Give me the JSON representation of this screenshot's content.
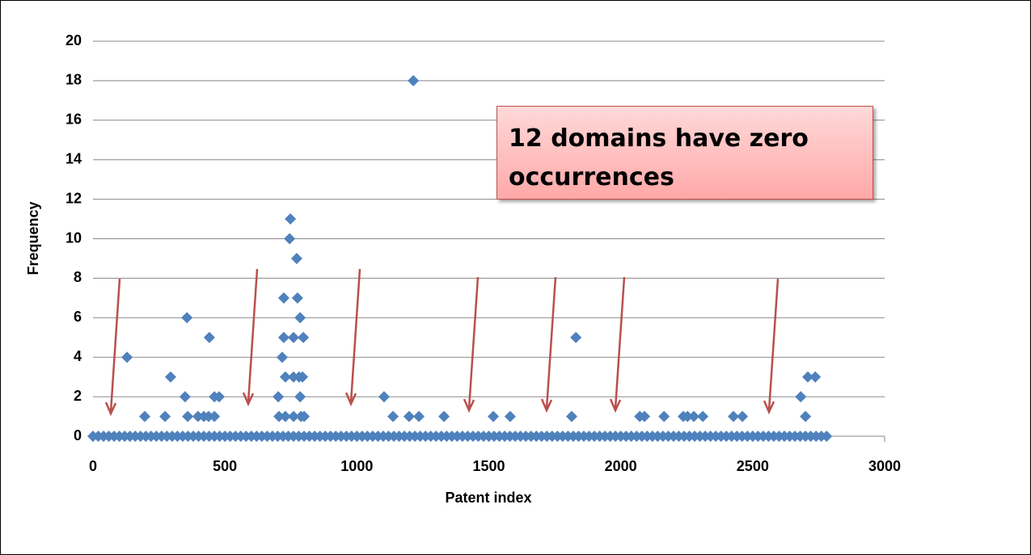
{
  "chart_data": {
    "type": "scatter",
    "xlabel": "Patent index",
    "ylabel": "Frequency",
    "annotation": "12 domains have zero occurrences",
    "xlim": [
      0,
      3000
    ],
    "xticks": [
      0,
      500,
      1000,
      1500,
      2000,
      2500,
      3000
    ],
    "ylim": [
      0,
      20
    ],
    "yticks": [
      0,
      2,
      4,
      6,
      8,
      10,
      12,
      14,
      16,
      18,
      20
    ],
    "grid": true,
    "series": [
      {
        "color": "#4f81bd",
        "x": [
          129,
          196,
          273,
          294,
          349,
          356,
          359,
          398,
          420,
          438,
          441,
          460,
          460,
          478,
          702,
          705,
          717,
          723,
          723,
          729,
          729,
          745,
          748,
          760,
          760,
          760,
          772,
          775,
          781,
          785,
          785,
          788,
          797,
          794,
          800,
          1103,
          1137,
          1198,
          1214,
          1235,
          1330,
          1517,
          1581,
          1814,
          1830,
          2072,
          2090,
          2164,
          2237,
          2253,
          2277,
          2311,
          2427,
          2461,
          2682,
          2700,
          2709,
          2737
        ],
        "values": [
          4,
          1,
          1,
          3,
          2,
          6,
          1,
          1,
          1,
          1,
          5,
          1,
          2,
          2,
          2,
          1,
          4,
          7,
          5,
          3,
          1,
          10,
          11,
          5,
          3,
          1,
          9,
          7,
          3,
          6,
          2,
          1,
          5,
          3,
          1,
          2,
          1,
          1,
          18,
          1,
          1,
          1,
          1,
          1,
          5,
          1,
          1,
          1,
          1,
          1,
          1,
          1,
          1,
          1,
          2,
          1,
          3,
          3
        ]
      },
      {
        "color": "#4f81bd",
        "x": [
          0,
          20,
          40,
          60,
          80,
          100,
          120,
          140,
          160,
          180,
          200,
          220,
          240,
          260,
          280,
          300,
          320,
          340,
          360,
          380,
          400,
          420,
          440,
          460,
          480,
          500,
          520,
          540,
          560,
          580,
          600,
          620,
          640,
          660,
          680,
          700,
          720,
          740,
          760,
          780,
          800,
          820,
          840,
          860,
          880,
          900,
          920,
          940,
          960,
          980,
          1000,
          1020,
          1040,
          1060,
          1080,
          1100,
          1120,
          1140,
          1160,
          1180,
          1200,
          1220,
          1240,
          1260,
          1280,
          1300,
          1320,
          1340,
          1360,
          1380,
          1400,
          1420,
          1440,
          1460,
          1480,
          1500,
          1520,
          1540,
          1560,
          1580,
          1600,
          1620,
          1640,
          1660,
          1680,
          1700,
          1720,
          1740,
          1760,
          1780,
          1800,
          1820,
          1840,
          1860,
          1880,
          1900,
          1920,
          1940,
          1960,
          1980,
          2000,
          2020,
          2040,
          2060,
          2080,
          2100,
          2120,
          2140,
          2160,
          2180,
          2200,
          2220,
          2240,
          2260,
          2280,
          2300,
          2320,
          2340,
          2360,
          2380,
          2400,
          2420,
          2440,
          2460,
          2480,
          2500,
          2520,
          2540,
          2560,
          2580,
          2600,
          2620,
          2640,
          2660,
          2680,
          2700,
          2720,
          2740,
          2760,
          2780
        ],
        "values": [
          0,
          0,
          0,
          0,
          0,
          0,
          0,
          0,
          0,
          0,
          0,
          0,
          0,
          0,
          0,
          0,
          0,
          0,
          0,
          0,
          0,
          0,
          0,
          0,
          0,
          0,
          0,
          0,
          0,
          0,
          0,
          0,
          0,
          0,
          0,
          0,
          0,
          0,
          0,
          0,
          0,
          0,
          0,
          0,
          0,
          0,
          0,
          0,
          0,
          0,
          0,
          0,
          0,
          0,
          0,
          0,
          0,
          0,
          0,
          0,
          0,
          0,
          0,
          0,
          0,
          0,
          0,
          0,
          0,
          0,
          0,
          0,
          0,
          0,
          0,
          0,
          0,
          0,
          0,
          0,
          0,
          0,
          0,
          0,
          0,
          0,
          0,
          0,
          0,
          0,
          0,
          0,
          0,
          0,
          0,
          0,
          0,
          0,
          0,
          0,
          0,
          0,
          0,
          0,
          0,
          0,
          0,
          0,
          0,
          0,
          0,
          0,
          0,
          0,
          0,
          0,
          0,
          0,
          0,
          0,
          0,
          0,
          0,
          0,
          0,
          0,
          0,
          0,
          0,
          0,
          0,
          0,
          0,
          0,
          0,
          0,
          0,
          0,
          0,
          0
        ]
      }
    ]
  }
}
